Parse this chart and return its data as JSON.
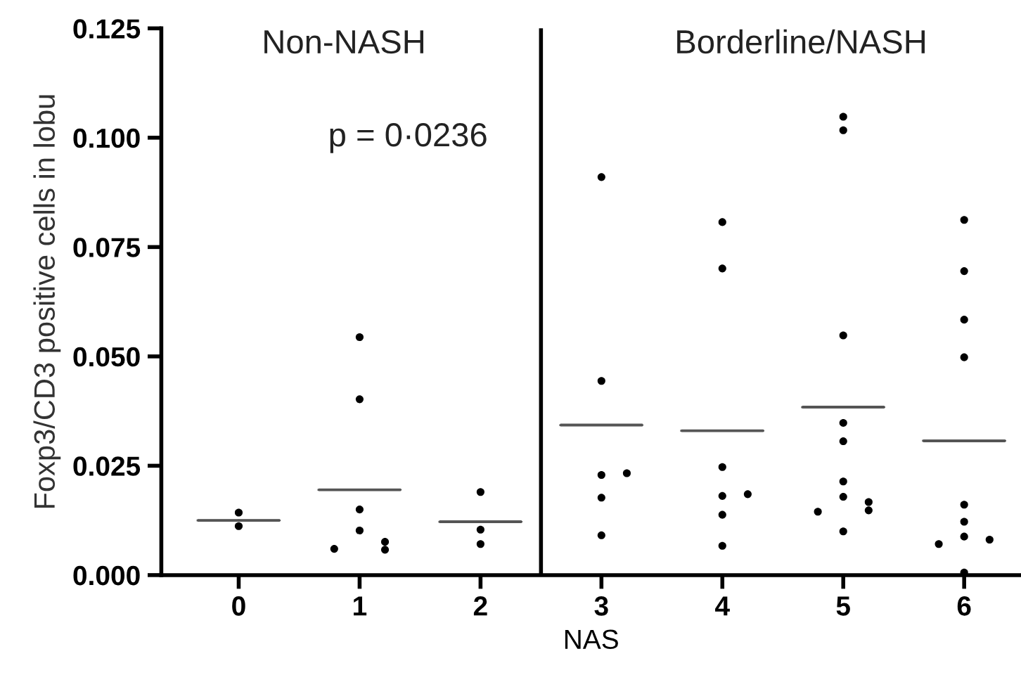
{
  "chart_data": {
    "type": "scatter",
    "xlabel": "NAS",
    "ylabel": "Foxp3/CD3 positive cells in lobu",
    "categories": [
      "0",
      "1",
      "2",
      "3",
      "4",
      "5",
      "6"
    ],
    "series": [
      {
        "color": "#000000",
        "marker": "circle",
        "x": [
          "0",
          "0",
          "1",
          "1",
          "1",
          "1",
          "1",
          "1",
          "1",
          "2",
          "2",
          "2",
          "3",
          "3",
          "3",
          "3",
          "3",
          "3",
          "4",
          "4",
          "4",
          "4",
          "4",
          "4",
          "4",
          "5",
          "5",
          "5",
          "5",
          "5",
          "5",
          "5",
          "5",
          "5",
          "5",
          "5",
          "6",
          "6",
          "6",
          "6",
          "6",
          "6",
          "6",
          "6",
          "6",
          "6"
        ],
        "values": [
          0.0112,
          0.0143,
          0.0544,
          0.0402,
          0.015,
          0.0102,
          0.0076,
          0.0058,
          0.006,
          0.019,
          0.0104,
          0.0071,
          0.091,
          0.0444,
          0.0229,
          0.0233,
          0.0177,
          0.0091,
          0.0807,
          0.0701,
          0.0247,
          0.0181,
          0.0185,
          0.0138,
          0.0067,
          0.1048,
          0.1017,
          0.0548,
          0.0348,
          0.0306,
          0.0214,
          0.0179,
          0.0167,
          0.0148,
          0.0145,
          0.01,
          0.0812,
          0.0695,
          0.0584,
          0.0498,
          0.0161,
          0.0122,
          0.0088,
          0.0081,
          0.0071,
          0.0006
        ]
      },
      {
        "type": "box",
        "color": "#555555",
        "boxes": [
          {
            "low": 0.0125,
            "q1": 0.0125,
            "median": 0.0125,
            "q3": 0.0125,
            "high": 0.0125
          },
          {
            "low": 0.0195,
            "q1": 0.0195,
            "median": 0.0195,
            "q3": 0.0195,
            "high": 0.0195
          },
          {
            "low": 0.0122,
            "q1": 0.0122,
            "median": 0.0122,
            "q3": 0.0122,
            "high": 0.0122
          },
          {
            "low": 0.0343,
            "q1": 0.0343,
            "median": 0.0343,
            "q3": 0.0343,
            "high": 0.0343
          },
          {
            "low": 0.033,
            "q1": 0.033,
            "median": 0.033,
            "q3": 0.033,
            "high": 0.033
          },
          {
            "low": 0.0384,
            "q1": 0.0384,
            "median": 0.0384,
            "q3": 0.0384,
            "high": 0.0384
          },
          {
            "low": 0.0307,
            "q1": 0.0307,
            "median": 0.0307,
            "q3": 0.0307,
            "high": 0.0307
          }
        ]
      }
    ],
    "ylim": [
      0,
      0.125
    ],
    "yticks": [
      {
        "value": 0,
        "label": "0.000"
      },
      {
        "value": 0.025,
        "label": "0.025"
      },
      {
        "value": 0.05,
        "label": "0.050"
      },
      {
        "value": 0.075,
        "label": "0.075"
      },
      {
        "value": 0.1,
        "label": "0.100"
      },
      {
        "value": 0.125,
        "label": "0.125"
      }
    ],
    "annotations": [
      "Non-NASH",
      "Borderline/NASH",
      "p = 0·0236"
    ],
    "grid": false,
    "legend": false
  }
}
